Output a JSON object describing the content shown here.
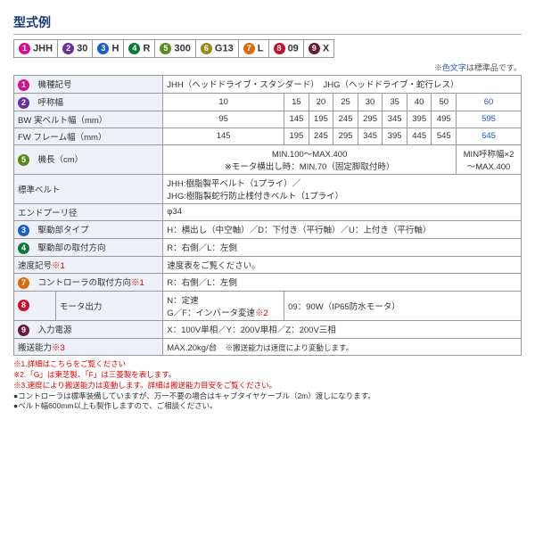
{
  "title": "型式例",
  "badges": [
    {
      "n": "1",
      "c": "#d40e8c"
    },
    {
      "n": "2",
      "c": "#6a2e9e"
    },
    {
      "n": "3",
      "c": "#1a5fc9"
    },
    {
      "n": "4",
      "c": "#0a7a3a"
    },
    {
      "n": "5",
      "c": "#5a8a1a"
    },
    {
      "n": "6",
      "c": "#9a8a1a"
    },
    {
      "n": "7",
      "c": "#d86a0a"
    },
    {
      "n": "8",
      "c": "#c9102a"
    },
    {
      "n": "9",
      "c": "#6a1a3a"
    }
  ],
  "model": [
    "JHH",
    "30",
    "H",
    "R",
    "300",
    "G13",
    "L",
    "09",
    "X"
  ],
  "noteRight": "※色文字は標準品です。",
  "rows": {
    "r1": {
      "lbl": "機種記号",
      "val": "JHH（ヘッドドライブ・スタンダード）　JHG（ヘッドドライブ・蛇行レス）"
    },
    "r2": {
      "lbl": "呼称幅",
      "cells": [
        "10",
        "15",
        "20",
        "25",
        "30",
        "35",
        "40",
        "50",
        "60"
      ]
    },
    "r3": {
      "lbl": "BW 実ベルト幅（mm）",
      "cells": [
        "95",
        "145",
        "195",
        "245",
        "295",
        "345",
        "395",
        "495",
        "595"
      ]
    },
    "r4": {
      "lbl": "FW フレーム幅（mm）",
      "cells": [
        "145",
        "195",
        "245",
        "295",
        "345",
        "395",
        "445",
        "545",
        "645"
      ]
    },
    "r5": {
      "lbl": "機長（cm）",
      "a": "MIN.100～MAX.400",
      "b": "※モータ横出し時：MIN.70（固定脚取付時）",
      "c": "MIN呼称幅×2",
      "d": "～MAX.400"
    },
    "r6": {
      "lbl": "標準ベルト",
      "val": "JHH:樹脂製平ベルト（1プライ）／\nJHG:樹脂製蛇行防止桟付きベルト（1プライ）"
    },
    "r7": {
      "lbl": "エンドプーリ径",
      "val": "φ34"
    },
    "r8": {
      "lbl": "駆動部タイプ",
      "val": "H：横出し（中空軸）／D：下付き（平行軸）／U：上付き（平行軸）"
    },
    "r9": {
      "lbl": "駆動部の取付方向",
      "val": "R：右側／L：左側"
    },
    "r10": {
      "lbl": "速度記号",
      "val": "速度表をご覧ください。"
    },
    "r11": {
      "lbl": "コントローラの取付方向",
      "val": "R：右側／L：左側"
    },
    "r12": {
      "lbl": "モータ出力",
      "a": "N：定速",
      "b": "G／F：インバータ変速",
      "val": "09：90W（IP65防水モータ）"
    },
    "r13": {
      "lbl": "入力電源",
      "val": "X：100V単相／Y：200V単相／Z：200V三相"
    },
    "r14": {
      "lbl": "搬送能力",
      "val": "MAX.20kg/台　",
      "note": "※搬送能力は速度により変動します。"
    }
  },
  "footnotes": [
    "※1.詳細はこちらをご覧ください",
    "※2.「G」は東芝製、「F」は三菱製を表します。",
    "※3.速度により搬送能力は変動します。詳細は搬送能力目安をご覧ください。",
    "●コントローラは標準装備していますが、万一不要の場合はキャブタイヤケーブル（2m）渡しになります。",
    "●ベルト幅600mm以上も製作しますので、ご相談ください。"
  ]
}
